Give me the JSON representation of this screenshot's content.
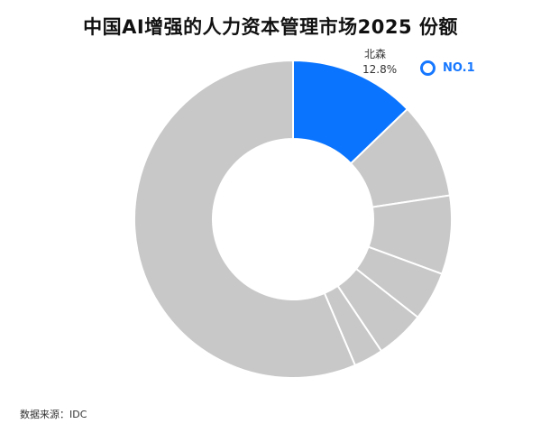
{
  "chart_data": {
    "type": "pie",
    "title": "中国AI增强的人力资本管理市场2025 份额",
    "donut": true,
    "leader": {
      "name": "北森",
      "value_label": "12.8%",
      "rank_label": "NO.1"
    },
    "slices": [
      {
        "name": "北森",
        "value": 12.8,
        "color": "#0a74ff"
      },
      {
        "value": 9.8,
        "color": "#c8c8c8"
      },
      {
        "value": 8.0,
        "color": "#c8c8c8"
      },
      {
        "value": 5.0,
        "color": "#c8c8c8"
      },
      {
        "value": 5.0,
        "color": "#c8c8c8"
      },
      {
        "value": 3.0,
        "color": "#c8c8c8"
      },
      {
        "value": 56.4,
        "color": "#c8c8c8"
      }
    ]
  },
  "source": "数据来源：IDC"
}
